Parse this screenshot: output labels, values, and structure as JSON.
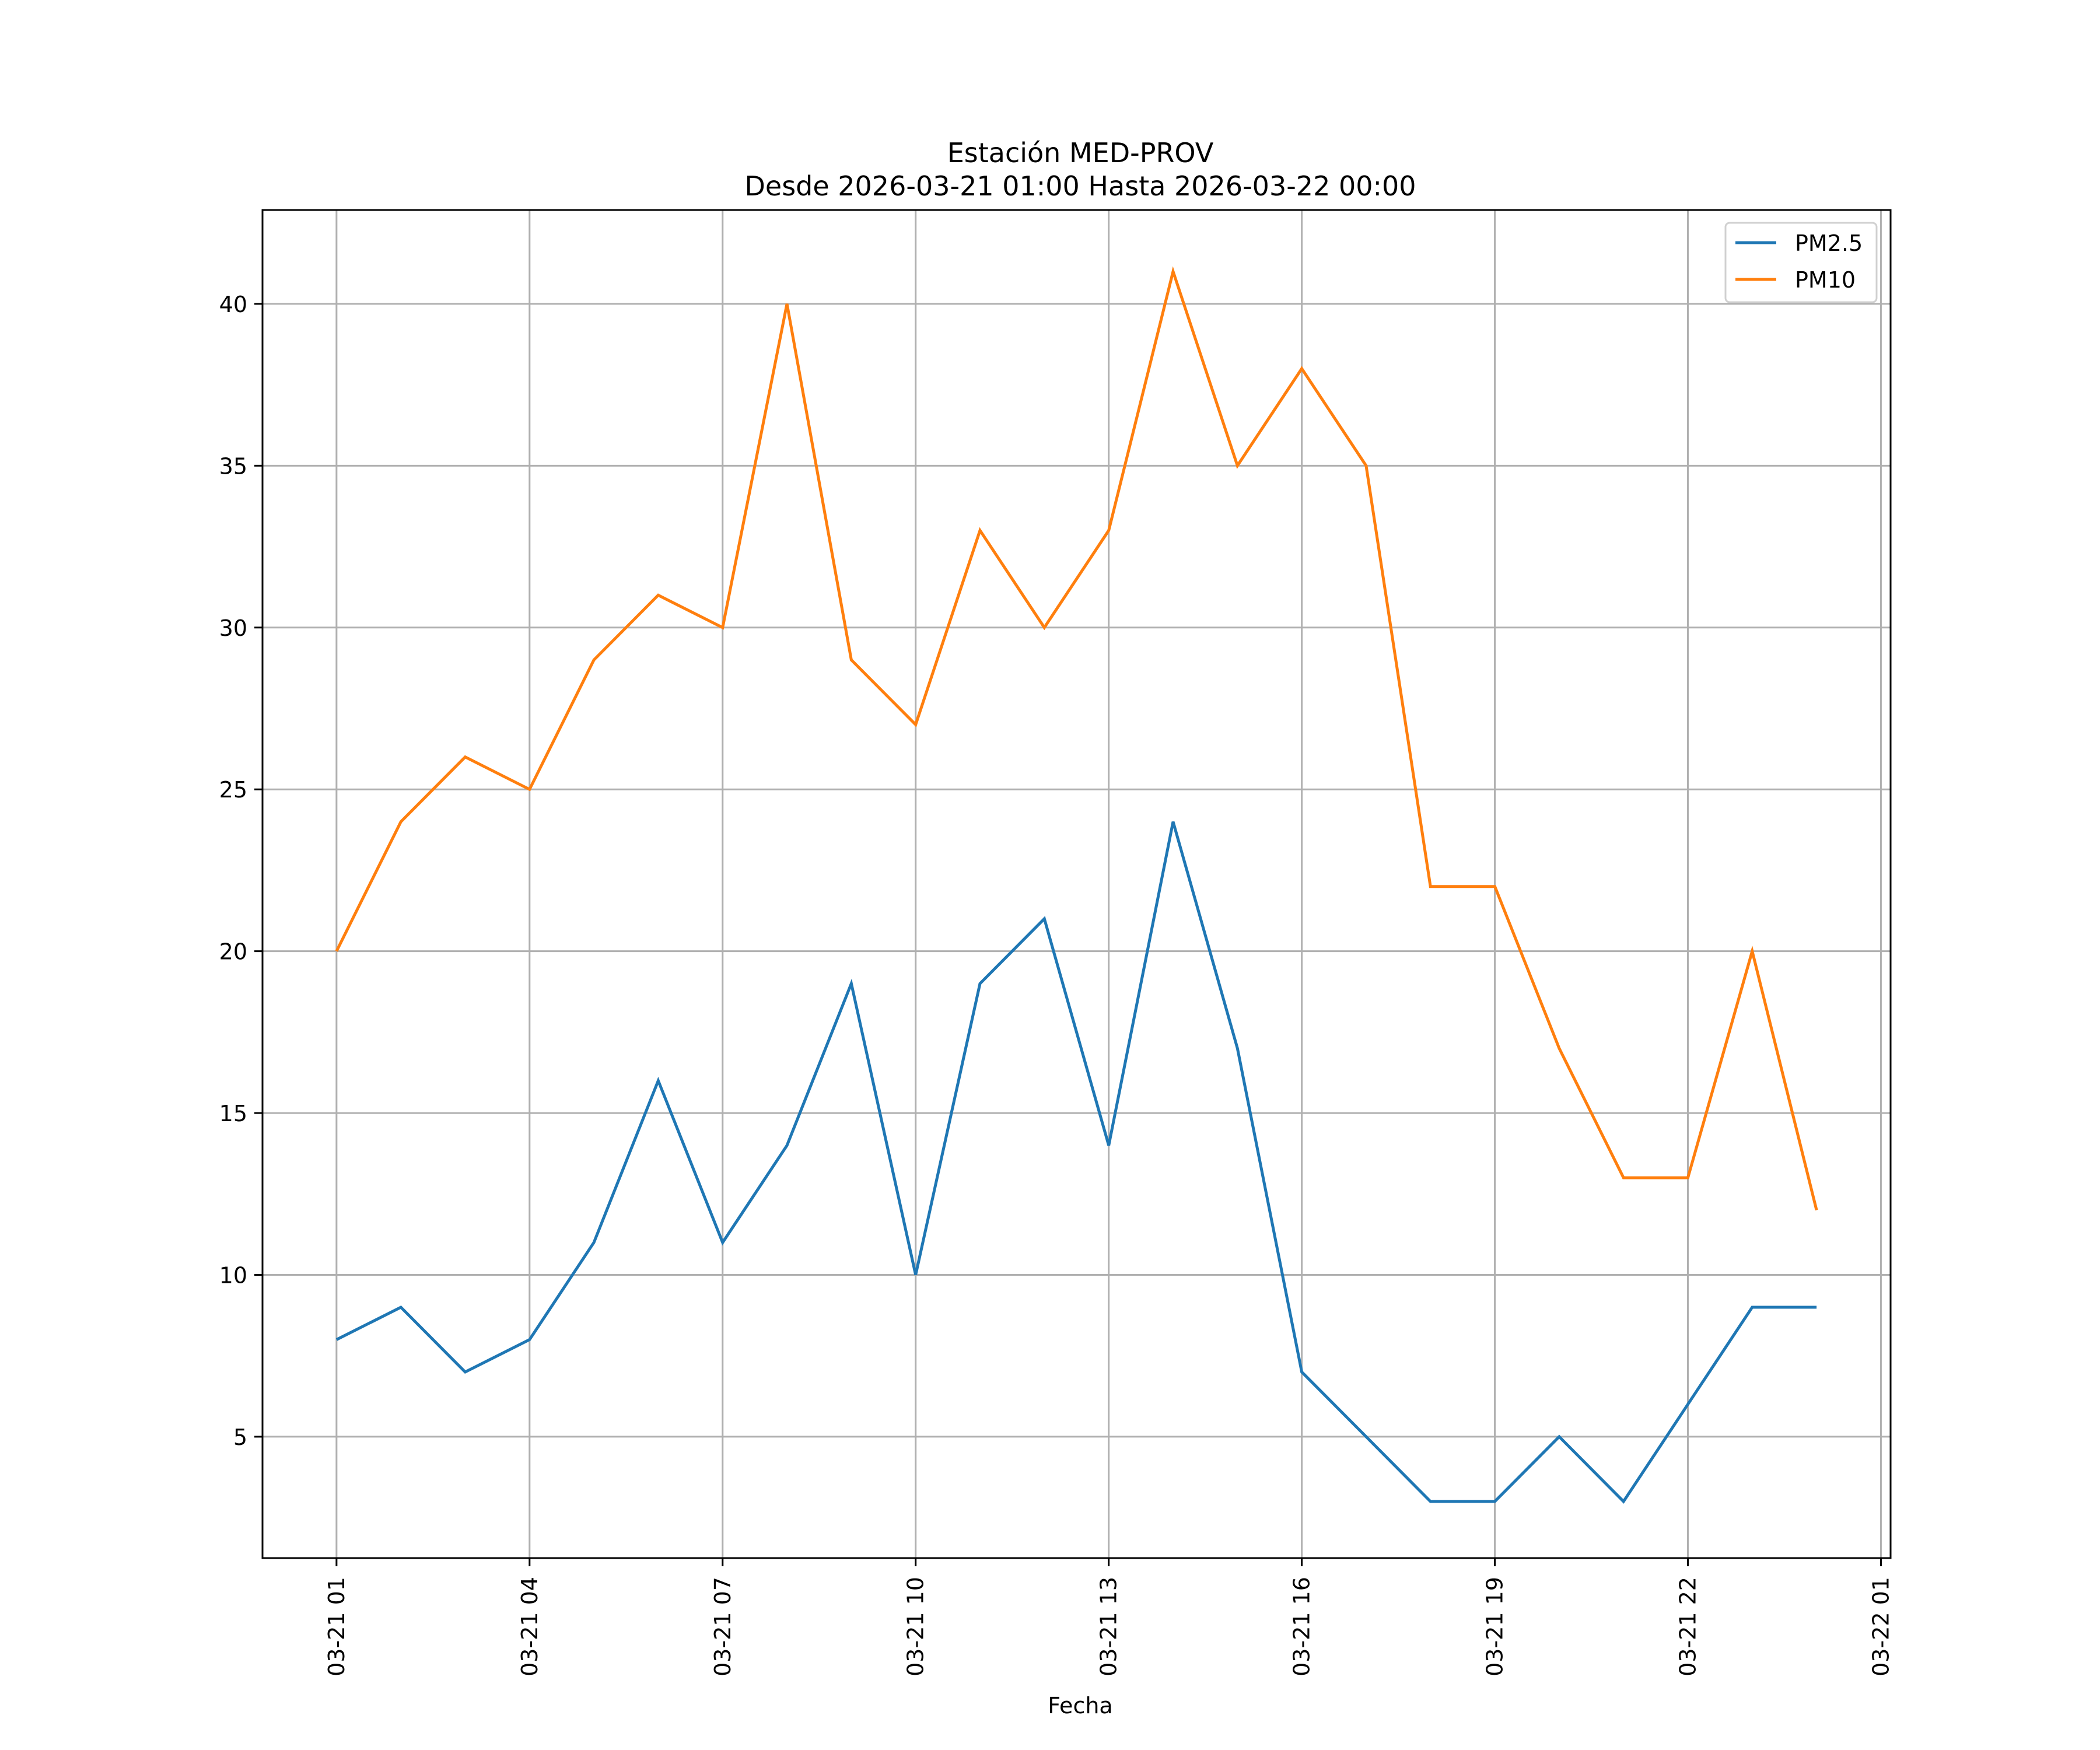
{
  "chart_data": {
    "type": "line",
    "title_line1": "Estación MED-PROV",
    "title_line2": "Desde 2026-03-21 01:00 Hasta 2026-03-22 00:00",
    "xlabel": "Fecha",
    "ylabel": "",
    "x": [
      "03-21 01:00",
      "03-21 02:00",
      "03-21 03:00",
      "03-21 04:00",
      "03-21 05:00",
      "03-21 06:00",
      "03-21 07:00",
      "03-21 08:00",
      "03-21 09:00",
      "03-21 10:00",
      "03-21 11:00",
      "03-21 12:00",
      "03-21 13:00",
      "03-21 14:00",
      "03-21 15:00",
      "03-21 16:00",
      "03-21 17:00",
      "03-21 18:00",
      "03-21 19:00",
      "03-21 20:00",
      "03-21 21:00",
      "03-21 22:00",
      "03-21 23:00",
      "03-22 00:00"
    ],
    "x_hours_from_start": [
      0,
      1,
      2,
      3,
      4,
      5,
      6,
      7,
      8,
      9,
      10,
      11,
      12,
      13,
      14,
      15,
      16,
      17,
      18,
      19,
      20,
      21,
      22,
      23
    ],
    "xlim_hours": [
      -1.15,
      24.15
    ],
    "xticks": [
      {
        "hour": 0,
        "label": "03-21 01"
      },
      {
        "hour": 3,
        "label": "03-21 04"
      },
      {
        "hour": 6,
        "label": "03-21 07"
      },
      {
        "hour": 9,
        "label": "03-21 10"
      },
      {
        "hour": 12,
        "label": "03-21 13"
      },
      {
        "hour": 15,
        "label": "03-21 16"
      },
      {
        "hour": 18,
        "label": "03-21 19"
      },
      {
        "hour": 21,
        "label": "03-21 22"
      },
      {
        "hour": 24,
        "label": "03-22 01"
      }
    ],
    "ylim": [
      1.25,
      42.9
    ],
    "yticks": [
      {
        "value": 5,
        "label": "5"
      },
      {
        "value": 10,
        "label": "10"
      },
      {
        "value": 15,
        "label": "15"
      },
      {
        "value": 20,
        "label": "20"
      },
      {
        "value": 25,
        "label": "25"
      },
      {
        "value": 30,
        "label": "30"
      },
      {
        "value": 35,
        "label": "35"
      },
      {
        "value": 40,
        "label": "40"
      }
    ],
    "grid": true,
    "legend_position": "top-right",
    "series": [
      {
        "name": "PM2.5",
        "color": "#1f77b4",
        "values": [
          8,
          9,
          7,
          8,
          11,
          16,
          11,
          14,
          19,
          10,
          19,
          21,
          14,
          24,
          17,
          7,
          5,
          3,
          3,
          5,
          3,
          6,
          9,
          9
        ]
      },
      {
        "name": "PM10",
        "color": "#ff7f0e",
        "values": [
          20,
          24,
          26,
          25,
          29,
          31,
          30,
          40,
          29,
          27,
          33,
          30,
          33,
          41,
          35,
          38,
          35,
          22,
          22,
          17,
          13,
          13,
          20,
          12
        ]
      }
    ]
  }
}
